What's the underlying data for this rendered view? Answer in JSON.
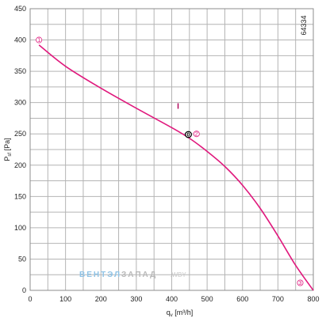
{
  "chart_data": {
    "type": "line",
    "title": "",
    "xlabel": "qv [m³/h]",
    "xlabel_main": "q",
    "xlabel_sub": "v",
    "xlabel_unit": " [m³/h]",
    "ylabel": "Psf [Pa]",
    "ylabel_main": "P",
    "ylabel_sub": "sf",
    "ylabel_unit": " [Pa]",
    "xlim": [
      0,
      800
    ],
    "ylim": [
      0,
      450
    ],
    "x_ticks": [
      0,
      100,
      200,
      300,
      400,
      500,
      600,
      700,
      800
    ],
    "y_ticks": [
      0,
      50,
      100,
      150,
      200,
      250,
      300,
      350,
      400,
      450
    ],
    "x_minor_step": 50,
    "y_minor_step": 25,
    "grid": true,
    "curve_color": "#e0197d",
    "series": [
      {
        "x": [
          25,
          100,
          200,
          300,
          400,
          450,
          500,
          550,
          600,
          650,
          700,
          750,
          800
        ],
        "y": [
          392,
          358,
          323,
          291,
          260,
          243,
          222,
          198,
          168,
          131,
          87,
          40,
          0
        ]
      }
    ],
    "annotations": {
      "model_code": "64334",
      "curve_label": "I",
      "curve_label_point": [
        418,
        290
      ],
      "operating_point": {
        "label": "0",
        "x": 447,
        "y": 249
      },
      "markers": [
        {
          "label": "1",
          "x": 25,
          "y": 400
        },
        {
          "label": "2",
          "x": 470,
          "y": 250
        },
        {
          "label": "3",
          "x": 763,
          "y": 12
        }
      ]
    },
    "watermark": {
      "part1": "ВЕНТЭЛ",
      "part2": "ЗАПАД",
      "part3": ".WBY"
    }
  }
}
